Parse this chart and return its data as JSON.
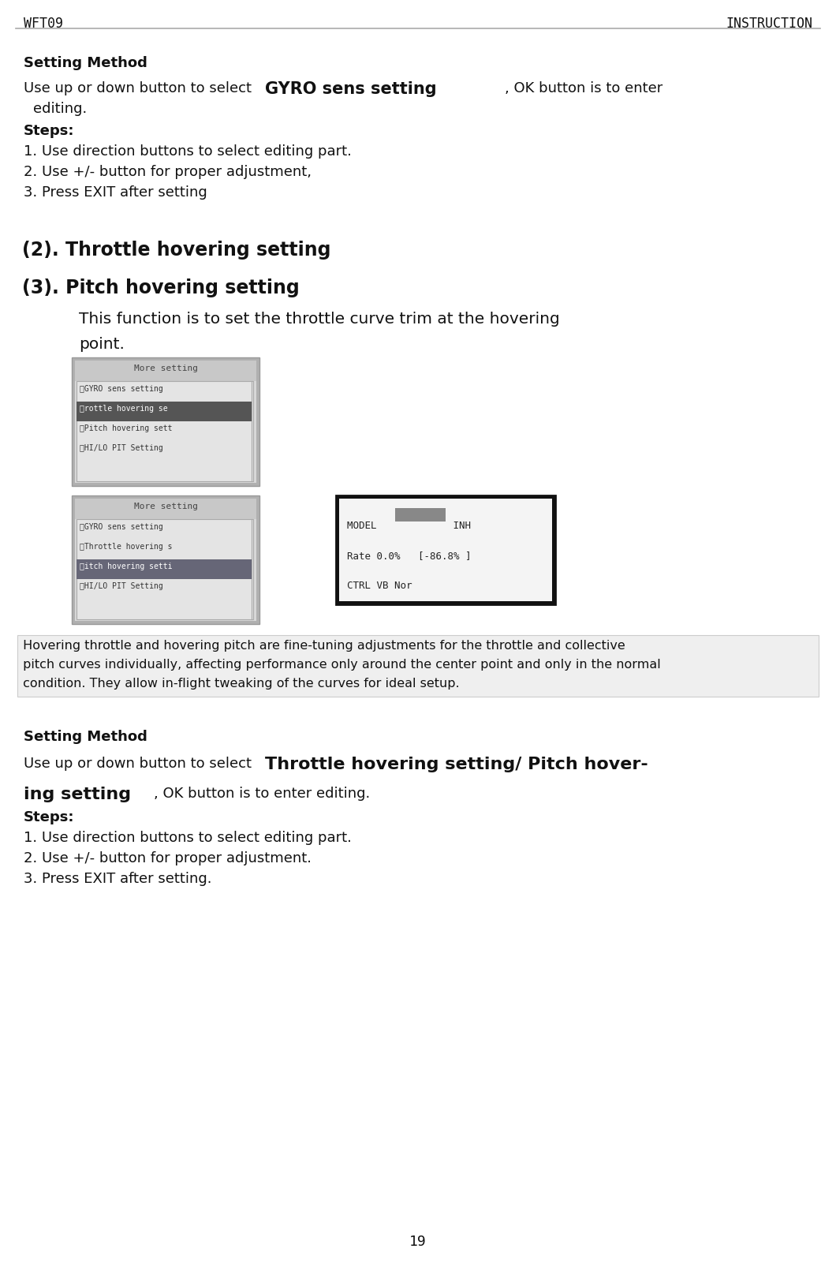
{
  "bg_color": "#ffffff",
  "text_color": "#111111",
  "header_left": "WFT09",
  "header_right": "INSTRUCTION",
  "section_top_title": "Setting Method",
  "section_top_steps": [
    "1. Use direction buttons to select editing part.",
    "2. Use +/- button for proper adjustment,",
    "3. Press EXIT after setting"
  ],
  "heading2": "(2). Throttle hovering setting",
  "heading3": "(3). Pitch hovering setting",
  "screen1_title": "More setting",
  "screen1_lines": [
    "①GYRO sens setting",
    "②rottle hovering se",
    "③Pitch hovering sett",
    "④HI/LO PIT Setting"
  ],
  "screen1_highlight": 1,
  "screen2_title": "More setting",
  "screen2_lines": [
    "①GYRO sens setting",
    "②Throttle hovering s",
    "③itch hovering setti",
    "④HI/LO PIT Setting"
  ],
  "screen2_highlight": 2,
  "hover_desc_lines": [
    " Hovering throttle and hovering pitch are fine-tuning adjustments for the throttle and collective",
    " pitch curves individually, affecting performance only around the center point and only in the normal",
    " condition. They allow in-flight tweaking of the curves for ideal setup."
  ],
  "section_bot_steps": [
    "1. Use direction buttons to select editing part.",
    "2. Use +/- button for proper adjustment.",
    "3. Press EXIT after setting."
  ],
  "page_number": "19"
}
